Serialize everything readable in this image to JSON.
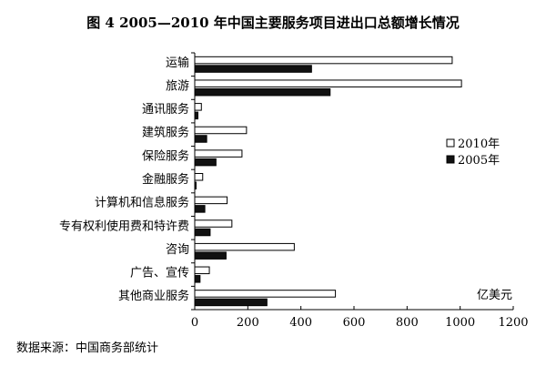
{
  "chart_data": {
    "type": "bar",
    "orientation": "horizontal",
    "title": "图 4    2005—2010 年中国主要服务项目进出口总额增长情况",
    "categories": [
      "运输",
      "旅游",
      "通讯服务",
      "建筑服务",
      "保险服务",
      "金融服务",
      "计算机和信息服务",
      "专有权利使用费和特许费",
      "咨询",
      "广告、宣传",
      "其他商业服务"
    ],
    "series": [
      {
        "name": "2010年",
        "color": "#ffffff",
        "values": [
          970,
          1005,
          25,
          195,
          178,
          30,
          122,
          140,
          375,
          55,
          530
        ]
      },
      {
        "name": "2005年",
        "color": "#111111",
        "values": [
          440,
          510,
          12,
          45,
          80,
          5,
          38,
          58,
          118,
          20,
          272
        ]
      }
    ],
    "xlim": [
      0,
      1200
    ],
    "xticks": [
      "0",
      "200",
      "400",
      "600",
      "800",
      "1000",
      "1200"
    ],
    "unit_label": "亿美元",
    "legend_position": "right",
    "grid": false,
    "source": "数据来源：中国商务部统计"
  }
}
